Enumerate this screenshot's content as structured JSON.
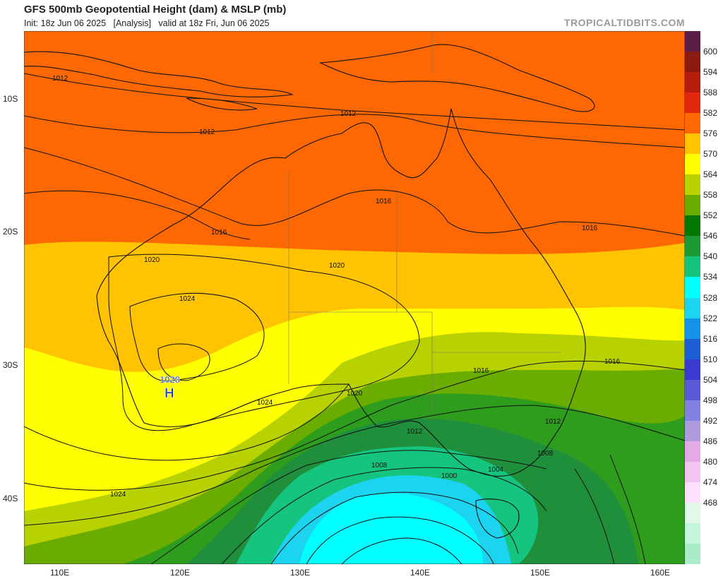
{
  "header": {
    "title": "GFS 500mb Geopotential Height (dam) & MSLP (mb)",
    "subtitle": "Init: 18z Jun 06 2025   [Analysis]   valid at 18z Fri, Jun 06 2025",
    "credit": "TROPICALTIDBITS.COM"
  },
  "map": {
    "lat_labels": [
      "10S",
      "20S",
      "30S",
      "40S"
    ],
    "lon_labels": [
      "110E",
      "120E",
      "130E",
      "140E",
      "150E",
      "160E"
    ],
    "isobar_labels": [
      "1012",
      "1012",
      "1012",
      "1016",
      "1016",
      "1016",
      "1016",
      "1016",
      "1020",
      "1020",
      "1020",
      "1024",
      "1024",
      "1024",
      "1012",
      "1008",
      "1008",
      "1004",
      "1000"
    ],
    "high_pressure": {
      "value": "1028",
      "symbol": "H"
    }
  },
  "legend": {
    "labels": [
      "600",
      "594",
      "588",
      "582",
      "576",
      "570",
      "564",
      "558",
      "552",
      "546",
      "540",
      "534",
      "528",
      "522",
      "516",
      "510",
      "504",
      "498",
      "492",
      "486",
      "480",
      "474",
      "468"
    ],
    "colors": [
      "#5a1e48",
      "#8b1a10",
      "#b51d0c",
      "#e3260e",
      "#fd6802",
      "#ffc301",
      "#ffff00",
      "#b8d100",
      "#6aac00",
      "#007700",
      "#1d9a36",
      "#15c47e",
      "#00ffff",
      "#1cd4f0",
      "#1392ea",
      "#1b5ed4",
      "#3a3ad0",
      "#5b5ad6",
      "#8282e0",
      "#b09ae0",
      "#e6a8e6",
      "#f4c4f4",
      "#fce0fc",
      "#e0f8e8",
      "#c4f4dc",
      "#a8ecc8"
    ]
  }
}
